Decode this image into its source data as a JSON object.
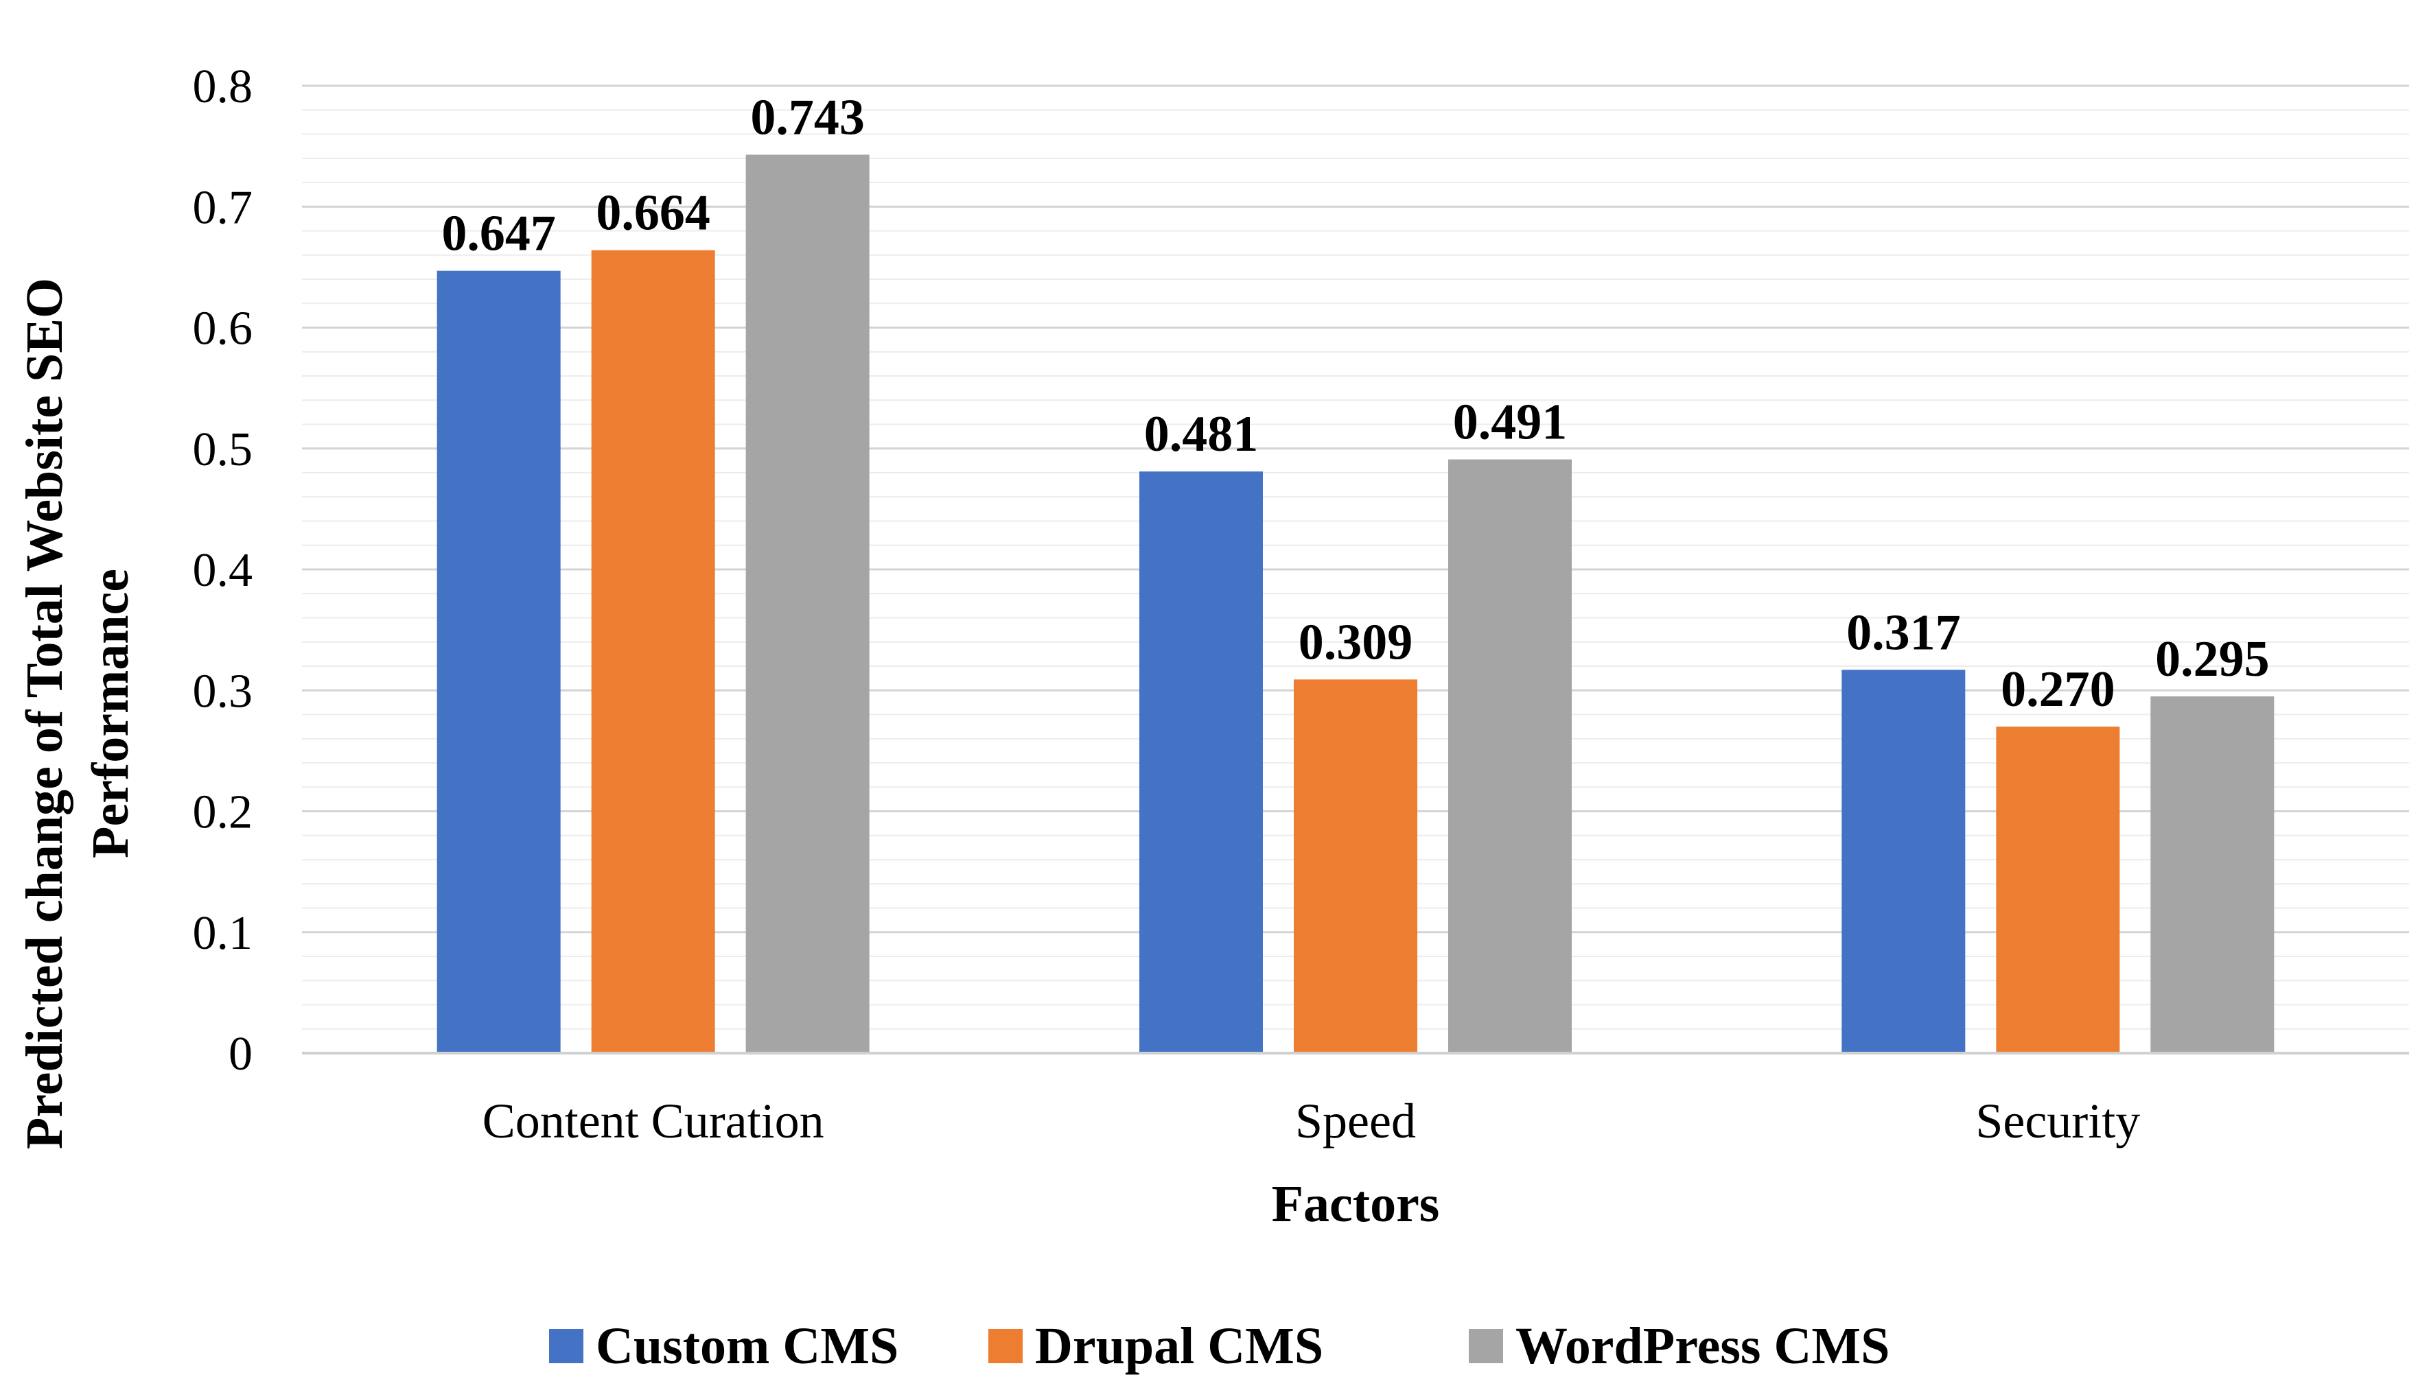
{
  "chart_data": {
    "type": "bar",
    "title": "",
    "xlabel": "Factors",
    "ylabel_lines": [
      "Predicted change of Total Website SEO",
      "Performance"
    ],
    "categories": [
      "Content Curation",
      "Speed",
      "Security"
    ],
    "series": [
      {
        "name": "Custom CMS",
        "color": "#4472C4",
        "values": [
          0.647,
          0.481,
          0.317
        ],
        "labels": [
          "0.647",
          "0.481",
          "0.317"
        ]
      },
      {
        "name": "Drupal CMS",
        "color": "#ED7D31",
        "values": [
          0.664,
          0.309,
          0.27
        ],
        "labels": [
          "0.664",
          "0.309",
          "0.270"
        ]
      },
      {
        "name": "WordPress CMS",
        "color": "#A5A5A5",
        "values": [
          0.743,
          0.491,
          0.295
        ],
        "labels": [
          "0.743",
          "0.491",
          "0.295"
        ]
      }
    ],
    "ylim": [
      0,
      0.8
    ],
    "yticks": [
      "0",
      "0.1",
      "0.2",
      "0.3",
      "0.4",
      "0.5",
      "0.6",
      "0.7",
      "0.8"
    ],
    "ytick_values": [
      0,
      0.1,
      0.2,
      0.3,
      0.4,
      0.5,
      0.6,
      0.7,
      0.8
    ],
    "minor_grid_step": 0.02,
    "grid": true,
    "legend_position": "bottom-center"
  }
}
